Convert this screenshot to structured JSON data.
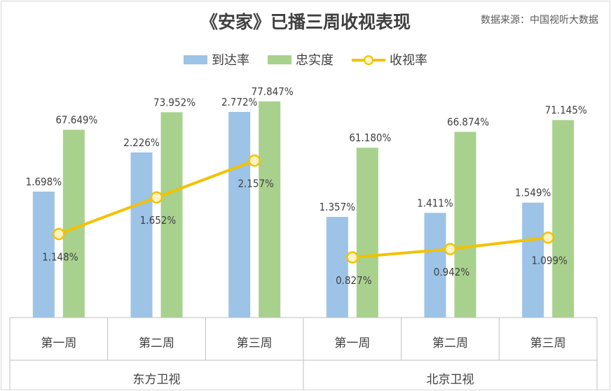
{
  "header": {
    "title": "《安家》已播三周收视表现",
    "source": "数据来源：中国视听大数据"
  },
  "colors": {
    "reach": "#9dc3e6",
    "loyalty": "#a9d18e",
    "rating": "#f2c200",
    "axis": "#bfbfbf",
    "text": "#404040"
  },
  "chart_data": {
    "type": "bar",
    "categories": [
      "第一周",
      "第二周",
      "第三周",
      "第一周",
      "第二周",
      "第三周"
    ],
    "groups": [
      {
        "label": "东方卫视",
        "category_indices": [
          0,
          1,
          2
        ]
      },
      {
        "label": "北京卫视",
        "category_indices": [
          3,
          4,
          5
        ]
      }
    ],
    "series": [
      {
        "name": "到达率",
        "type": "bar",
        "axis": "secondary",
        "values": [
          1.698,
          2.226,
          2.772,
          1.357,
          1.411,
          1.549
        ],
        "labels": [
          "1.698%",
          "2.226%",
          "2.772%",
          "1.357%",
          "1.411%",
          "1.549%"
        ]
      },
      {
        "name": "忠实度",
        "type": "bar",
        "axis": "primary",
        "values": [
          67.649,
          73.952,
          77.847,
          61.18,
          66.874,
          71.145
        ],
        "labels": [
          "67.649%",
          "73.952%",
          "77.847%",
          "61.180%",
          "66.874%",
          "71.145%"
        ]
      },
      {
        "name": "收视率",
        "type": "line",
        "axis": "secondary",
        "values": [
          1.148,
          1.652,
          2.157,
          0.827,
          0.942,
          1.099
        ],
        "labels": [
          "1.148%",
          "1.652%",
          "2.157%",
          "0.827%",
          "0.942%",
          "1.099%"
        ]
      }
    ],
    "unit": "%",
    "legend": "top-center",
    "grid": false
  }
}
